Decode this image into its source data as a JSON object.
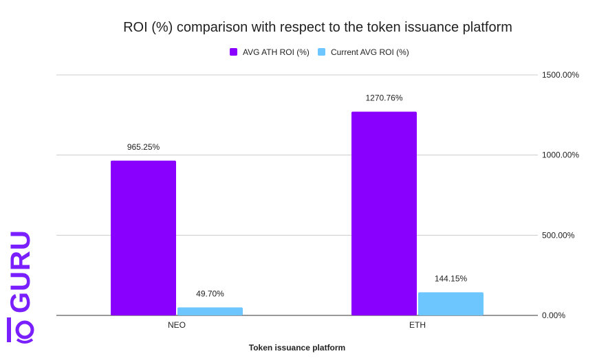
{
  "chart_data": {
    "type": "bar",
    "title": "ROI (%) comparison with respect to the token issuance platform",
    "xlabel": "Token issuance platform",
    "ylabel": "",
    "categories": [
      "NEO",
      "ETH"
    ],
    "series": [
      {
        "name": "AVG ATH ROI (%)",
        "color": "#8a00ff",
        "values": [
          965.25,
          1270.76
        ],
        "labels": [
          "965.25%",
          "1270.76%"
        ]
      },
      {
        "name": "Current AVG ROI (%)",
        "color": "#6ec6ff",
        "values": [
          49.7,
          144.15
        ],
        "labels": [
          "49.70%",
          "144.15%"
        ]
      }
    ],
    "ylim": [
      0,
      1500
    ],
    "yticks": [
      0,
      500,
      1000,
      1500
    ],
    "ytick_labels": [
      "0.00%",
      "500.00%",
      "1000.00%",
      "1500.00%"
    ],
    "y_axis_side": "right",
    "legend_position": "top-center",
    "grid": true
  },
  "logo": {
    "text": "GURU",
    "color": "#7a1fff",
    "icon": "coin-guru-logo-icon"
  }
}
